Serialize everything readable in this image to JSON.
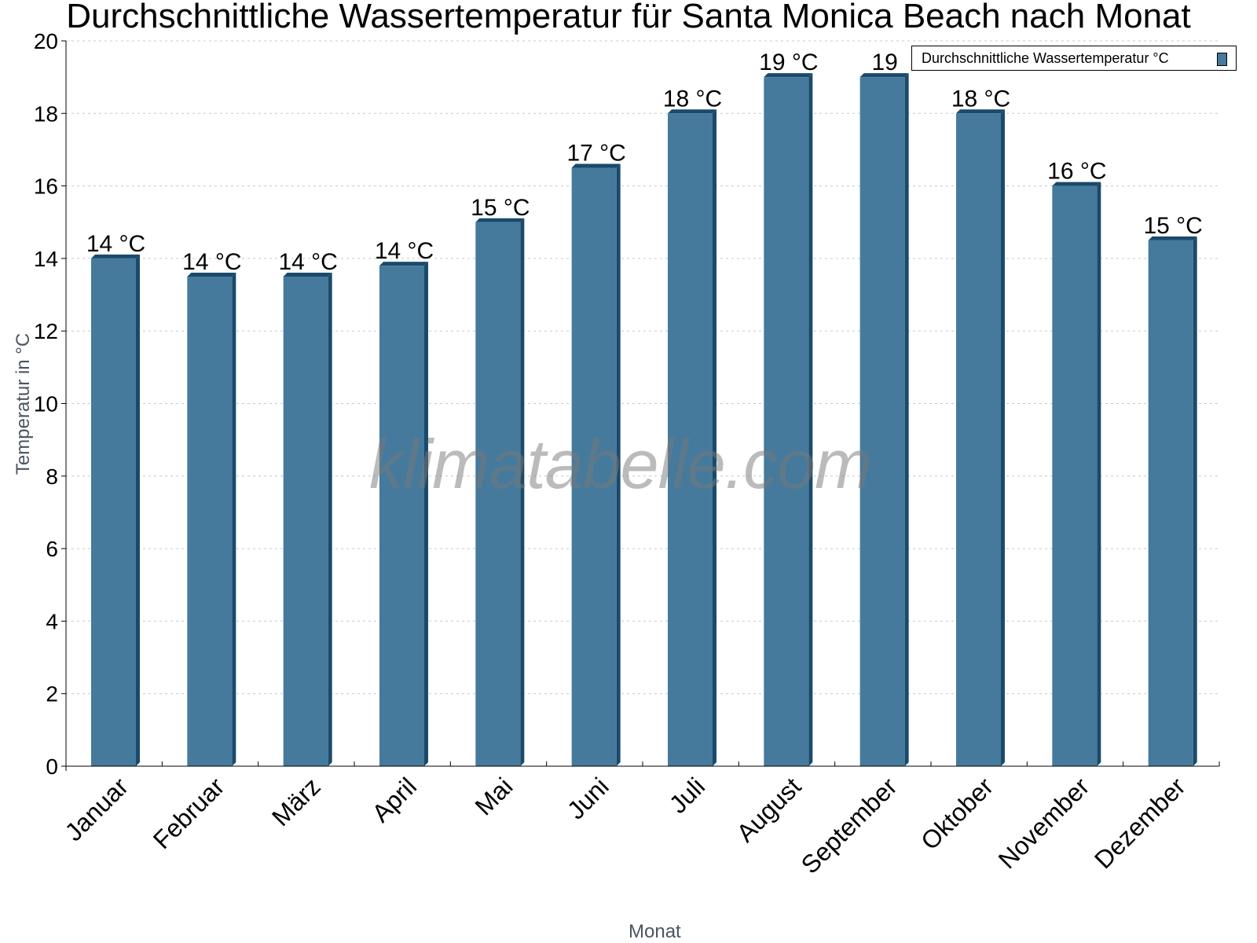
{
  "title": "Durchschnittliche Wassertemperatur für Santa Monica Beach nach Monat",
  "legend": {
    "label": "Durchschnittliche Wassertemperatur °C",
    "color": "#457a9c"
  },
  "watermark": "klimatabelle.com",
  "axes": {
    "xlabel": "Monat",
    "ylabel": "Temperatur in °C"
  },
  "colors": {
    "bar_front": "#457a9c",
    "bar_side": "#1a4a6b",
    "grid": "#c8c8c8"
  },
  "chart_data": {
    "type": "bar",
    "title": "Durchschnittliche Wassertemperatur für Santa Monica Beach nach Monat",
    "xlabel": "Monat",
    "ylabel": "Temperatur in °C",
    "ylim": [
      0,
      20
    ],
    "yticks": [
      0,
      2,
      4,
      6,
      8,
      10,
      12,
      14,
      16,
      18,
      20
    ],
    "grid": true,
    "legend_position": "top-right",
    "categories": [
      "Januar",
      "Februar",
      "März",
      "April",
      "Mai",
      "Juni",
      "Juli",
      "August",
      "September",
      "Oktober",
      "November",
      "Dezember"
    ],
    "series": [
      {
        "name": "Durchschnittliche Wassertemperatur °C",
        "values": [
          14.0,
          13.5,
          13.5,
          13.8,
          15.0,
          16.5,
          18.0,
          19.0,
          19.0,
          18.0,
          16.0,
          14.5
        ],
        "labels": [
          "14 °C",
          "14 °C",
          "14 °C",
          "14 °C",
          "15 °C",
          "17 °C",
          "18 °C",
          "19 °C",
          "19",
          "18 °C",
          "16 °C",
          "15 °C"
        ]
      }
    ]
  }
}
